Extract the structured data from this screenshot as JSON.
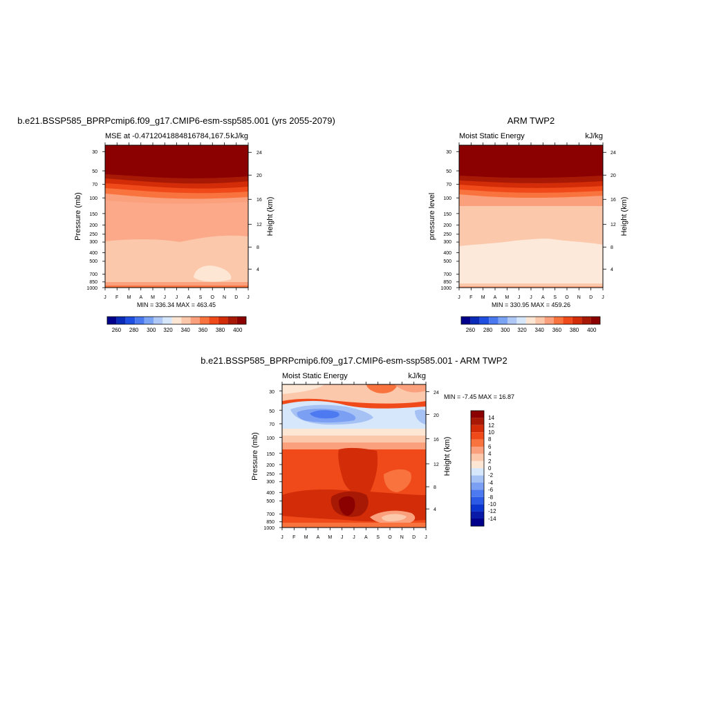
{
  "chart_data": [
    {
      "type": "heatmap",
      "title": "b.e21.BSSP585_BPRPcmip6.f09_g17.CMIP6-esm-ssp585.001 (yrs 2055-2079)",
      "subtitle_left": "MSE at -0.4712041884816784,167.5",
      "units": "kJ/kg",
      "ylabel": "Pressure (mb)",
      "ylabel_right": "Height (km)",
      "x_ticks": [
        "J",
        "F",
        "M",
        "A",
        "M",
        "J",
        "J",
        "A",
        "S",
        "O",
        "N",
        "D",
        "J"
      ],
      "y_ticks": [
        "30",
        "50",
        "70",
        "100",
        "150",
        "200",
        "250",
        "300",
        "400",
        "500",
        "700",
        "850",
        "1000"
      ],
      "y_ticks_right": [
        "24",
        "20",
        "16",
        "12",
        "8",
        "4"
      ],
      "minmax": "MIN = 336.34 MAX = 463.45",
      "colorbar_ticks": [
        "260",
        "280",
        "300",
        "320",
        "340",
        "360",
        "380",
        "400"
      ],
      "levels": [
        {
          "p": 30,
          "v": 420
        },
        {
          "p": 50,
          "v": 420
        },
        {
          "p": 55,
          "v": 400
        },
        {
          "p": 65,
          "v": 385
        },
        {
          "p": 75,
          "v": 372
        },
        {
          "p": 90,
          "v": 362
        },
        {
          "p": 110,
          "v": 355
        },
        {
          "p": 180,
          "v": 352
        },
        {
          "p": 280,
          "v": 350
        },
        {
          "p": 350,
          "v": 345
        },
        {
          "p": 600,
          "v": 344
        },
        {
          "p": 800,
          "v": 343
        },
        {
          "p": 950,
          "v": 352
        },
        {
          "p": 1000,
          "v": 360
        }
      ],
      "region_note": "lighter pocket near Sep-Oct at ~700 mb (value 338)"
    },
    {
      "type": "heatmap",
      "title": "ARM TWP2",
      "subtitle_left": "Moist Static Energy",
      "units": "kJ/kg",
      "ylabel": "pressure level",
      "ylabel_right": "Height (km)",
      "x_ticks": [
        "J",
        "F",
        "M",
        "A",
        "M",
        "J",
        "J",
        "A",
        "S",
        "O",
        "N",
        "D",
        "J"
      ],
      "y_ticks": [
        "30",
        "50",
        "70",
        "100",
        "150",
        "200",
        "250",
        "300",
        "400",
        "500",
        "700",
        "850",
        "1000"
      ],
      "y_ticks_right": [
        "24",
        "20",
        "16",
        "12",
        "8",
        "4"
      ],
      "minmax": "MIN = 330.95 MAX = 459.26",
      "colorbar_ticks": [
        "260",
        "280",
        "300",
        "320",
        "340",
        "360",
        "380",
        "400"
      ]
    },
    {
      "type": "heatmap",
      "title": "b.e21.BSSP585_BPRPcmip6.f09_g17.CMIP6-esm-ssp585.001 - ARM TWP2",
      "subtitle_left": "Moist Static Energy",
      "units": "kJ/kg",
      "ylabel": "Pressure (mb)",
      "ylabel_right": "Height (km)",
      "x_ticks": [
        "J",
        "F",
        "M",
        "A",
        "M",
        "J",
        "J",
        "A",
        "S",
        "O",
        "N",
        "D",
        "J"
      ],
      "y_ticks": [
        "30",
        "50",
        "70",
        "100",
        "150",
        "200",
        "250",
        "300",
        "400",
        "500",
        "700",
        "850",
        "1000"
      ],
      "y_ticks_right": [
        "24",
        "20",
        "16",
        "12",
        "8",
        "4"
      ],
      "minmax": "MIN =  -7.45 MAX =  16.87",
      "colorbar_ticks": [
        "14",
        "12",
        "10",
        "8",
        "6",
        "4",
        "2",
        "0",
        "-2",
        "-4",
        "-6",
        "-8",
        "-10",
        "-12",
        "-14"
      ]
    }
  ],
  "colors": {
    "mse_scale": [
      "#00008b",
      "#0a2bb8",
      "#1f4fe0",
      "#4a78ef",
      "#7aa3f3",
      "#b0c8f5",
      "#d6e6fb",
      "#fde6d4",
      "#fcc8ab",
      "#fba07c",
      "#f9733f",
      "#f04a1a",
      "#d22c08",
      "#a81905",
      "#8b0000"
    ],
    "diff_scale": [
      "#00008b",
      "#0a1aa8",
      "#0b35cf",
      "#2a5ae6",
      "#4d7af0",
      "#7ba0f3",
      "#a6c2f5",
      "#d6e6fb",
      "#fde6d4",
      "#fcc8ab",
      "#fba07c",
      "#f9733f",
      "#f04a1a",
      "#d22c08",
      "#a81905",
      "#8b0000"
    ]
  }
}
